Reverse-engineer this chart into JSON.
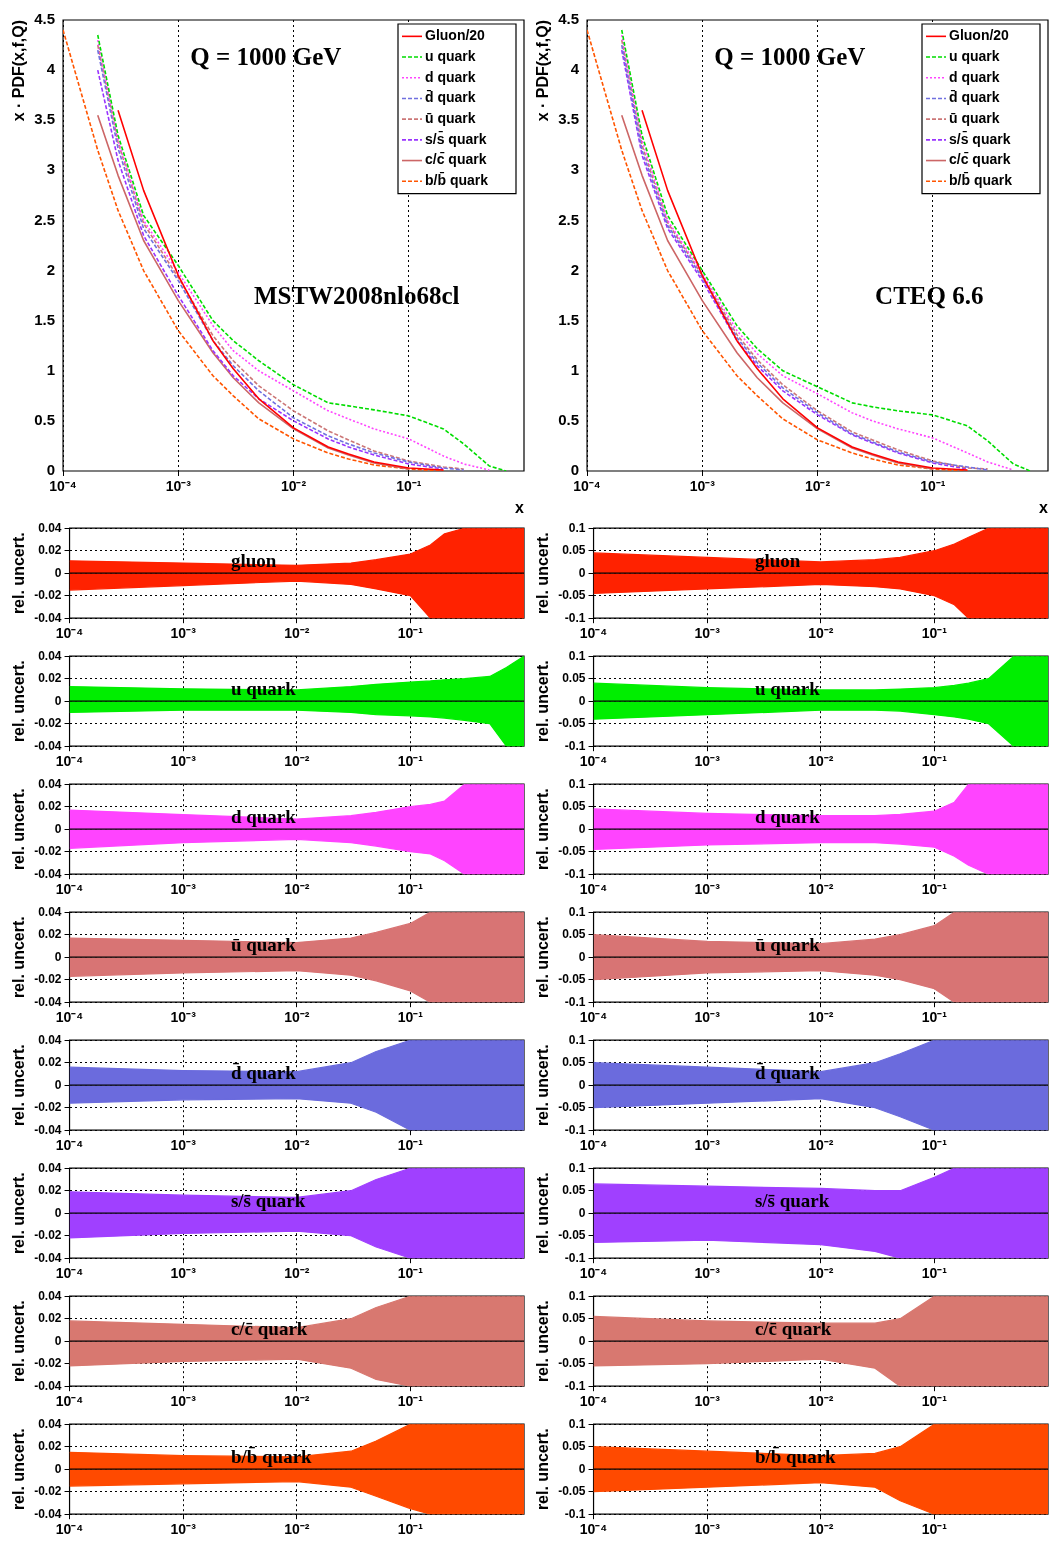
{
  "chart_data": [
    {
      "type": "line",
      "log": "x",
      "grid": "x",
      "legend": "top right",
      "ylabel": "x · PDF(x,f,Q)",
      "xlabel": "x",
      "xlim": [
        0.0001,
        1
      ],
      "xticks": [
        {
          "value": 0.0001,
          "label": "10⁻⁴"
        },
        {
          "value": 0.001,
          "label": "10⁻³"
        },
        {
          "value": 0.01,
          "label": "10⁻²"
        },
        {
          "value": 0.1,
          "label": "10⁻¹"
        }
      ],
      "ylim": [
        0,
        4.5
      ],
      "yticks": [
        0,
        0.5,
        1,
        1.5,
        2,
        2.5,
        3,
        3.5,
        4,
        4.5
      ],
      "annotations": [
        "Q = 1000 GeV",
        "MSTW2008nlo68cl"
      ],
      "x": [
        0.0001,
        0.0002,
        0.0003,
        0.0005,
        0.001,
        0.002,
        0.003,
        0.005,
        0.01,
        0.02,
        0.03,
        0.05,
        0.1,
        0.2,
        0.3,
        0.5,
        0.7
      ],
      "series": [
        {
          "name": "Gluon/20",
          "color": "#ff0000",
          "line_style": "solid",
          "values": [
            null,
            null,
            3.6,
            2.8,
            1.95,
            1.3,
            1.02,
            0.72,
            0.43,
            0.24,
            0.17,
            0.09,
            0.03,
            0.01,
            null,
            null,
            null
          ]
        },
        {
          "name": "u quark",
          "color": "#00dd00",
          "line_style": "dashed",
          "values": [
            null,
            4.35,
            3.35,
            2.55,
            2.05,
            1.5,
            1.3,
            1.1,
            0.86,
            0.68,
            0.65,
            0.61,
            0.55,
            0.42,
            0.27,
            0.05,
            0
          ]
        },
        {
          "name": "d quark",
          "color": "#ff44ff",
          "line_style": "dotted",
          "values": [
            null,
            4.3,
            3.3,
            2.5,
            1.98,
            1.45,
            1.2,
            1.0,
            0.8,
            0.6,
            0.52,
            0.42,
            0.32,
            0.15,
            0.07,
            0.01,
            null
          ]
        },
        {
          "name": "d̄ quark",
          "color": "#7070e0",
          "line_style": "dashed",
          "values": [
            null,
            4.2,
            3.22,
            2.42,
            1.9,
            1.3,
            1.05,
            0.8,
            0.53,
            0.35,
            0.27,
            0.18,
            0.09,
            0.03,
            0.01,
            null,
            null
          ]
        },
        {
          "name": "ū quark",
          "color": "#cc7777",
          "line_style": "dashed",
          "values": [
            null,
            4.25,
            3.28,
            2.47,
            1.93,
            1.35,
            1.1,
            0.85,
            0.6,
            0.4,
            0.31,
            0.2,
            0.1,
            0.04,
            0.02,
            null,
            null
          ]
        },
        {
          "name": "s/s̄ quark",
          "color": "#9933ff",
          "line_style": "dashed",
          "values": [
            null,
            4.0,
            3.1,
            2.35,
            1.75,
            1.2,
            0.95,
            0.72,
            0.5,
            0.32,
            0.24,
            0.16,
            0.07,
            0.02,
            null,
            null,
            null
          ]
        },
        {
          "name": "c/c̄ quark",
          "color": "#cc6666",
          "line_style": "solid",
          "values": [
            null,
            3.55,
            2.95,
            2.3,
            1.7,
            1.18,
            0.93,
            0.68,
            0.42,
            0.23,
            0.16,
            0.08,
            0.02,
            null,
            null,
            null,
            null
          ]
        },
        {
          "name": "b/b̄ quark",
          "color": "#ff5500",
          "line_style": "dashed",
          "values": [
            4.4,
            3.2,
            2.6,
            2.0,
            1.4,
            0.95,
            0.75,
            0.52,
            0.32,
            0.18,
            0.12,
            0.06,
            0.02,
            0,
            null,
            null,
            null
          ]
        }
      ]
    },
    {
      "type": "line",
      "log": "x",
      "grid": "x",
      "legend": "top right",
      "ylabel": "x · PDF(x,f,Q)",
      "xlabel": "x",
      "xlim": [
        0.0001,
        1
      ],
      "xticks": [
        {
          "value": 0.0001,
          "label": "10⁻⁴"
        },
        {
          "value": 0.001,
          "label": "10⁻³"
        },
        {
          "value": 0.01,
          "label": "10⁻²"
        },
        {
          "value": 0.1,
          "label": "10⁻¹"
        }
      ],
      "ylim": [
        0,
        4.5
      ],
      "yticks": [
        0,
        0.5,
        1,
        1.5,
        2,
        2.5,
        3,
        3.5,
        4,
        4.5
      ],
      "annotations": [
        "Q = 1000 GeV",
        "CTEQ 6.6"
      ],
      "x": [
        0.0001,
        0.0002,
        0.0003,
        0.0005,
        0.001,
        0.002,
        0.003,
        0.005,
        0.01,
        0.02,
        0.03,
        0.05,
        0.1,
        0.2,
        0.3,
        0.5,
        0.7
      ],
      "series": [
        {
          "name": "Gluon/20",
          "color": "#ff0000",
          "line_style": "solid",
          "values": [
            null,
            null,
            3.6,
            2.8,
            1.95,
            1.3,
            1.02,
            0.72,
            0.43,
            0.24,
            0.17,
            0.09,
            0.03,
            0.01,
            null,
            null,
            null
          ]
        },
        {
          "name": "u quark",
          "color": "#00dd00",
          "line_style": "dashed",
          "values": [
            null,
            4.4,
            3.35,
            2.55,
            2.0,
            1.45,
            1.22,
            1.0,
            0.84,
            0.68,
            0.64,
            0.6,
            0.56,
            0.45,
            0.3,
            0.07,
            0
          ]
        },
        {
          "name": "d quark",
          "color": "#ff44ff",
          "line_style": "dotted",
          "values": [
            null,
            4.35,
            3.3,
            2.5,
            1.97,
            1.4,
            1.17,
            0.95,
            0.77,
            0.58,
            0.5,
            0.42,
            0.33,
            0.18,
            0.09,
            0.01,
            null
          ]
        },
        {
          "name": "d̄ quark",
          "color": "#7070e0",
          "line_style": "dashed",
          "values": [
            null,
            4.25,
            3.2,
            2.45,
            1.93,
            1.33,
            1.08,
            0.83,
            0.58,
            0.37,
            0.29,
            0.19,
            0.09,
            0.04,
            0.01,
            null,
            null
          ]
        },
        {
          "name": "ū quark",
          "color": "#cc7777",
          "line_style": "dashed",
          "values": [
            null,
            4.3,
            3.25,
            2.48,
            1.95,
            1.36,
            1.11,
            0.86,
            0.6,
            0.39,
            0.31,
            0.21,
            0.1,
            0.03,
            0.02,
            null,
            null
          ]
        },
        {
          "name": "s/s̄ quark",
          "color": "#9933ff",
          "line_style": "dashed",
          "values": [
            null,
            4.2,
            3.15,
            2.42,
            1.9,
            1.3,
            1.05,
            0.8,
            0.56,
            0.36,
            0.28,
            0.18,
            0.08,
            0.02,
            null,
            null,
            null
          ]
        },
        {
          "name": "c/c̄ quark",
          "color": "#cc6666",
          "line_style": "solid",
          "values": [
            null,
            3.55,
            2.95,
            2.3,
            1.7,
            1.18,
            0.93,
            0.68,
            0.42,
            0.23,
            0.16,
            0.08,
            0.02,
            null,
            null,
            null,
            null
          ]
        },
        {
          "name": "b/b̄ quark",
          "color": "#ff5500",
          "line_style": "dashed",
          "values": [
            4.4,
            3.2,
            2.6,
            2.0,
            1.4,
            0.95,
            0.75,
            0.52,
            0.31,
            0.18,
            0.12,
            0.06,
            0.02,
            0,
            null,
            null,
            null
          ]
        }
      ]
    },
    {
      "type": "area",
      "log": "x",
      "grid": true,
      "ylabel": "rel. uncert.",
      "xlim": [
        0.0001,
        1
      ],
      "xticks": [
        {
          "value": 0.0001,
          "label": "10⁻⁴"
        },
        {
          "value": 0.001,
          "label": "10⁻³"
        },
        {
          "value": 0.01,
          "label": "10⁻²"
        },
        {
          "value": 0.1,
          "label": "10⁻¹"
        }
      ],
      "ylim": [
        -0.04,
        0.04
      ],
      "yticks": [
        -0.04,
        -0.02,
        0,
        0.02,
        0.04
      ],
      "annotations": [
        "gluon"
      ],
      "ref_lines": [
        {
          "axis": "y",
          "value": 0,
          "color": "#000000"
        }
      ],
      "x": [
        0.0001,
        0.001,
        0.01,
        0.03,
        0.05,
        0.1,
        0.15,
        0.2,
        0.3,
        0.5,
        0.7,
        1
      ],
      "series": [
        {
          "color": "#ff2200",
          "values": [
            0.011,
            0.009,
            0.007,
            0.009,
            0.012,
            0.017,
            0.025,
            0.035,
            0.04,
            0.04,
            0.04,
            0.04
          ]
        },
        {
          "color": "#ff2200",
          "values": [
            -0.015,
            -0.011,
            -0.007,
            -0.01,
            -0.014,
            -0.02,
            -0.04,
            -0.04,
            -0.04,
            -0.04,
            -0.04,
            -0.04
          ]
        }
      ]
    },
    {
      "type": "area",
      "log": "x",
      "grid": true,
      "ylabel": "rel. uncert.",
      "xlim": [
        0.0001,
        1
      ],
      "xticks": [
        {
          "value": 0.0001,
          "label": "10⁻⁴"
        },
        {
          "value": 0.001,
          "label": "10⁻³"
        },
        {
          "value": 0.01,
          "label": "10⁻²"
        },
        {
          "value": 0.1,
          "label": "10⁻¹"
        }
      ],
      "ylim": [
        -0.1,
        0.1
      ],
      "yticks": [
        -0.1,
        -0.05,
        0,
        0.05,
        0.1
      ],
      "annotations": [
        "gluon"
      ],
      "ref_lines": [
        {
          "axis": "y",
          "value": 0,
          "color": "#000000"
        }
      ],
      "x": [
        0.0001,
        0.001,
        0.01,
        0.03,
        0.05,
        0.1,
        0.15,
        0.2,
        0.3,
        0.5,
        0.7,
        1
      ],
      "series": [
        {
          "color": "#ff2200",
          "values": [
            0.045,
            0.035,
            0.025,
            0.03,
            0.035,
            0.05,
            0.065,
            0.08,
            0.1,
            0.1,
            0.1,
            0.1
          ]
        },
        {
          "color": "#ff2200",
          "values": [
            -0.045,
            -0.035,
            -0.025,
            -0.03,
            -0.035,
            -0.05,
            -0.07,
            -0.1,
            -0.1,
            -0.1,
            -0.1,
            -0.1
          ]
        }
      ]
    },
    {
      "type": "area",
      "log": "x",
      "grid": true,
      "ylabel": "rel. uncert.",
      "xlim": [
        0.0001,
        1
      ],
      "xticks": [
        {
          "value": 0.0001,
          "label": "10⁻⁴"
        },
        {
          "value": 0.001,
          "label": "10⁻³"
        },
        {
          "value": 0.01,
          "label": "10⁻²"
        },
        {
          "value": 0.1,
          "label": "10⁻¹"
        }
      ],
      "ylim": [
        -0.04,
        0.04
      ],
      "yticks": [
        -0.04,
        -0.02,
        0,
        0.02,
        0.04
      ],
      "annotations": [
        "u quark"
      ],
      "ref_lines": [
        {
          "axis": "y",
          "value": 0,
          "color": "#000000"
        }
      ],
      "x": [
        0.0001,
        0.001,
        0.01,
        0.03,
        0.05,
        0.1,
        0.15,
        0.2,
        0.3,
        0.5,
        0.7,
        1
      ],
      "series": [
        {
          "color": "#00ee00",
          "values": [
            0.013,
            0.011,
            0.01,
            0.013,
            0.015,
            0.017,
            0.018,
            0.019,
            0.02,
            0.022,
            0.03,
            0.04
          ]
        },
        {
          "color": "#00ee00",
          "values": [
            -0.01,
            -0.008,
            -0.008,
            -0.01,
            -0.012,
            -0.013,
            -0.014,
            -0.015,
            -0.017,
            -0.02,
            -0.04,
            -0.04
          ]
        }
      ]
    },
    {
      "type": "area",
      "log": "x",
      "grid": true,
      "ylabel": "rel. uncert.",
      "xlim": [
        0.0001,
        1
      ],
      "xticks": [
        {
          "value": 0.0001,
          "label": "10⁻⁴"
        },
        {
          "value": 0.001,
          "label": "10⁻³"
        },
        {
          "value": 0.01,
          "label": "10⁻²"
        },
        {
          "value": 0.1,
          "label": "10⁻¹"
        }
      ],
      "ylim": [
        -0.1,
        0.1
      ],
      "yticks": [
        -0.1,
        -0.05,
        0,
        0.05,
        0.1
      ],
      "annotations": [
        "u quark"
      ],
      "ref_lines": [
        {
          "axis": "y",
          "value": 0,
          "color": "#000000"
        }
      ],
      "x": [
        0.0001,
        0.001,
        0.01,
        0.03,
        0.05,
        0.1,
        0.15,
        0.2,
        0.3,
        0.5,
        0.7,
        1
      ],
      "series": [
        {
          "color": "#00ee00",
          "values": [
            0.04,
            0.03,
            0.025,
            0.025,
            0.027,
            0.03,
            0.035,
            0.04,
            0.05,
            0.1,
            0.1,
            0.1
          ]
        },
        {
          "color": "#00ee00",
          "values": [
            -0.04,
            -0.03,
            -0.02,
            -0.02,
            -0.022,
            -0.03,
            -0.035,
            -0.04,
            -0.05,
            -0.1,
            -0.1,
            -0.1
          ]
        }
      ]
    },
    {
      "type": "area",
      "log": "x",
      "grid": true,
      "ylabel": "rel. uncert.",
      "xlim": [
        0.0001,
        1
      ],
      "xticks": [
        {
          "value": 0.0001,
          "label": "10⁻⁴"
        },
        {
          "value": 0.001,
          "label": "10⁻³"
        },
        {
          "value": 0.01,
          "label": "10⁻²"
        },
        {
          "value": 0.1,
          "label": "10⁻¹"
        }
      ],
      "ylim": [
        -0.04,
        0.04
      ],
      "yticks": [
        -0.04,
        -0.02,
        0,
        0.02,
        0.04
      ],
      "annotations": [
        "d quark"
      ],
      "ref_lines": [
        {
          "axis": "y",
          "value": 0,
          "color": "#000000"
        }
      ],
      "x": [
        0.0001,
        0.001,
        0.01,
        0.03,
        0.05,
        0.1,
        0.15,
        0.2,
        0.3,
        0.5,
        0.7,
        1
      ],
      "series": [
        {
          "color": "#ff44ff",
          "values": [
            0.017,
            0.013,
            0.009,
            0.012,
            0.015,
            0.02,
            0.022,
            0.025,
            0.04,
            0.04,
            0.04,
            0.04
          ]
        },
        {
          "color": "#ff44ff",
          "values": [
            -0.017,
            -0.012,
            -0.009,
            -0.012,
            -0.015,
            -0.02,
            -0.022,
            -0.028,
            -0.04,
            -0.04,
            -0.04,
            -0.04
          ]
        }
      ]
    },
    {
      "type": "area",
      "log": "x",
      "grid": true,
      "ylabel": "rel. uncert.",
      "xlim": [
        0.0001,
        1
      ],
      "xticks": [
        {
          "value": 0.0001,
          "label": "10⁻⁴"
        },
        {
          "value": 0.001,
          "label": "10⁻³"
        },
        {
          "value": 0.01,
          "label": "10⁻²"
        },
        {
          "value": 0.1,
          "label": "10⁻¹"
        }
      ],
      "ylim": [
        -0.1,
        0.1
      ],
      "yticks": [
        -0.1,
        -0.05,
        0,
        0.05,
        0.1
      ],
      "annotations": [
        "d quark"
      ],
      "ref_lines": [
        {
          "axis": "y",
          "value": 0,
          "color": "#000000"
        }
      ],
      "x": [
        0.0001,
        0.001,
        0.01,
        0.03,
        0.05,
        0.1,
        0.15,
        0.2,
        0.3,
        0.5,
        0.7,
        1
      ],
      "series": [
        {
          "color": "#ff44ff",
          "values": [
            0.045,
            0.035,
            0.03,
            0.03,
            0.033,
            0.04,
            0.06,
            0.1,
            0.1,
            0.1,
            0.1,
            0.1
          ]
        },
        {
          "color": "#ff44ff",
          "values": [
            -0.045,
            -0.035,
            -0.03,
            -0.03,
            -0.033,
            -0.04,
            -0.06,
            -0.08,
            -0.1,
            -0.1,
            -0.1,
            -0.1
          ]
        }
      ]
    },
    {
      "type": "area",
      "log": "x",
      "grid": true,
      "ylabel": "rel. uncert.",
      "xlim": [
        0.0001,
        1
      ],
      "xticks": [
        {
          "value": 0.0001,
          "label": "10⁻⁴"
        },
        {
          "value": 0.001,
          "label": "10⁻³"
        },
        {
          "value": 0.01,
          "label": "10⁻²"
        },
        {
          "value": 0.1,
          "label": "10⁻¹"
        }
      ],
      "ylim": [
        -0.04,
        0.04
      ],
      "yticks": [
        -0.04,
        -0.02,
        0,
        0.02,
        0.04
      ],
      "annotations": [
        "ū quark"
      ],
      "ref_lines": [
        {
          "axis": "y",
          "value": 0,
          "color": "#000000"
        }
      ],
      "x": [
        0.0001,
        0.001,
        0.01,
        0.03,
        0.05,
        0.1,
        0.15,
        0.2,
        0.3,
        0.5,
        0.7,
        1
      ],
      "series": [
        {
          "color": "#d87474",
          "values": [
            0.017,
            0.015,
            0.013,
            0.017,
            0.022,
            0.03,
            0.04,
            0.04,
            0.04,
            0.04,
            0.04,
            0.04
          ]
        },
        {
          "color": "#d87474",
          "values": [
            -0.017,
            -0.014,
            -0.012,
            -0.016,
            -0.021,
            -0.03,
            -0.04,
            -0.04,
            -0.04,
            -0.04,
            -0.04,
            -0.04
          ]
        }
      ]
    },
    {
      "type": "area",
      "log": "x",
      "grid": true,
      "ylabel": "rel. uncert.",
      "xlim": [
        0.0001,
        1
      ],
      "xticks": [
        {
          "value": 0.0001,
          "label": "10⁻⁴"
        },
        {
          "value": 0.001,
          "label": "10⁻³"
        },
        {
          "value": 0.01,
          "label": "10⁻²"
        },
        {
          "value": 0.1,
          "label": "10⁻¹"
        }
      ],
      "ylim": [
        -0.1,
        0.1
      ],
      "yticks": [
        -0.1,
        -0.05,
        0,
        0.05,
        0.1
      ],
      "annotations": [
        "ū quark"
      ],
      "ref_lines": [
        {
          "axis": "y",
          "value": 0,
          "color": "#000000"
        }
      ],
      "x": [
        0.0001,
        0.001,
        0.01,
        0.03,
        0.05,
        0.1,
        0.15,
        0.2,
        0.3,
        0.5,
        0.7,
        1
      ],
      "series": [
        {
          "color": "#d87474",
          "values": [
            0.05,
            0.035,
            0.03,
            0.04,
            0.05,
            0.07,
            0.1,
            0.1,
            0.1,
            0.1,
            0.1,
            0.1
          ]
        },
        {
          "color": "#d87474",
          "values": [
            -0.05,
            -0.035,
            -0.03,
            -0.04,
            -0.05,
            -0.07,
            -0.1,
            -0.1,
            -0.1,
            -0.1,
            -0.1,
            -0.1
          ]
        }
      ]
    },
    {
      "type": "area",
      "log": "x",
      "grid": true,
      "ylabel": "rel. uncert.",
      "xlim": [
        0.0001,
        1
      ],
      "xticks": [
        {
          "value": 0.0001,
          "label": "10⁻⁴"
        },
        {
          "value": 0.001,
          "label": "10⁻³"
        },
        {
          "value": 0.01,
          "label": "10⁻²"
        },
        {
          "value": 0.1,
          "label": "10⁻¹"
        }
      ],
      "ylim": [
        -0.04,
        0.04
      ],
      "yticks": [
        -0.04,
        -0.02,
        0,
        0.02,
        0.04
      ],
      "annotations": [
        "d̄ quark"
      ],
      "ref_lines": [
        {
          "axis": "y",
          "value": 0,
          "color": "#000000"
        }
      ],
      "x": [
        0.0001,
        0.001,
        0.01,
        0.03,
        0.05,
        0.1,
        0.15,
        0.2,
        0.3,
        0.5,
        0.7,
        1
      ],
      "series": [
        {
          "color": "#6b6bdd",
          "values": [
            0.016,
            0.013,
            0.012,
            0.02,
            0.03,
            0.04,
            0.04,
            0.04,
            0.04,
            0.04,
            0.04,
            0.04
          ]
        },
        {
          "color": "#6b6bdd",
          "values": [
            -0.016,
            -0.013,
            -0.012,
            -0.016,
            -0.024,
            -0.04,
            -0.04,
            -0.04,
            -0.04,
            -0.04,
            -0.04,
            -0.04
          ]
        }
      ]
    },
    {
      "type": "area",
      "log": "x",
      "grid": true,
      "ylabel": "rel. uncert.",
      "xlim": [
        0.0001,
        1
      ],
      "xticks": [
        {
          "value": 0.0001,
          "label": "10⁻⁴"
        },
        {
          "value": 0.001,
          "label": "10⁻³"
        },
        {
          "value": 0.01,
          "label": "10⁻²"
        },
        {
          "value": 0.1,
          "label": "10⁻¹"
        }
      ],
      "ylim": [
        -0.1,
        0.1
      ],
      "yticks": [
        -0.1,
        -0.05,
        0,
        0.05,
        0.1
      ],
      "annotations": [
        "d̄ quark"
      ],
      "ref_lines": [
        {
          "axis": "y",
          "value": 0,
          "color": "#000000"
        }
      ],
      "x": [
        0.0001,
        0.001,
        0.01,
        0.03,
        0.05,
        0.1,
        0.15,
        0.2,
        0.3,
        0.5,
        0.7,
        1
      ],
      "series": [
        {
          "color": "#6b6bdd",
          "values": [
            0.05,
            0.04,
            0.03,
            0.05,
            0.07,
            0.1,
            0.1,
            0.1,
            0.1,
            0.1,
            0.1,
            0.1
          ]
        },
        {
          "color": "#6b6bdd",
          "values": [
            -0.05,
            -0.04,
            -0.03,
            -0.05,
            -0.07,
            -0.1,
            -0.1,
            -0.1,
            -0.1,
            -0.1,
            -0.1,
            -0.1
          ]
        }
      ]
    },
    {
      "type": "area",
      "log": "x",
      "grid": true,
      "ylabel": "rel. uncert.",
      "xlim": [
        0.0001,
        1
      ],
      "xticks": [
        {
          "value": 0.0001,
          "label": "10⁻⁴"
        },
        {
          "value": 0.001,
          "label": "10⁻³"
        },
        {
          "value": 0.01,
          "label": "10⁻²"
        },
        {
          "value": 0.1,
          "label": "10⁻¹"
        }
      ],
      "ylim": [
        -0.04,
        0.04
      ],
      "yticks": [
        -0.04,
        -0.02,
        0,
        0.02,
        0.04
      ],
      "annotations": [
        "s/s̄ quark"
      ],
      "ref_lines": [
        {
          "axis": "y",
          "value": 0,
          "color": "#000000"
        }
      ],
      "x": [
        0.0001,
        0.001,
        0.01,
        0.03,
        0.05,
        0.1,
        0.15,
        0.2,
        0.3,
        0.5,
        0.7,
        1
      ],
      "series": [
        {
          "color": "#a040ff",
          "values": [
            0.019,
            0.016,
            0.014,
            0.02,
            0.03,
            0.04,
            0.04,
            0.04,
            0.04,
            0.04,
            0.04,
            0.04
          ]
        },
        {
          "color": "#a040ff",
          "values": [
            -0.022,
            -0.018,
            -0.016,
            -0.02,
            -0.03,
            -0.04,
            -0.04,
            -0.04,
            -0.04,
            -0.04,
            -0.04,
            -0.04
          ]
        }
      ]
    },
    {
      "type": "area",
      "log": "x",
      "grid": true,
      "ylabel": "rel. uncert.",
      "xlim": [
        0.0001,
        1
      ],
      "xticks": [
        {
          "value": 0.0001,
          "label": "10⁻⁴"
        },
        {
          "value": 0.001,
          "label": "10⁻³"
        },
        {
          "value": 0.01,
          "label": "10⁻²"
        },
        {
          "value": 0.1,
          "label": "10⁻¹"
        }
      ],
      "ylim": [
        -0.1,
        0.1
      ],
      "yticks": [
        -0.1,
        -0.05,
        0,
        0.05,
        0.1
      ],
      "annotations": [
        "s/s̄ quark"
      ],
      "ref_lines": [
        {
          "axis": "y",
          "value": 0,
          "color": "#000000"
        }
      ],
      "x": [
        0.0001,
        0.001,
        0.01,
        0.03,
        0.05,
        0.1,
        0.15,
        0.2,
        0.3,
        0.5,
        0.7,
        1
      ],
      "series": [
        {
          "color": "#a040ff",
          "values": [
            0.065,
            0.06,
            0.055,
            0.05,
            0.05,
            0.08,
            0.1,
            0.1,
            0.1,
            0.1,
            0.1,
            0.1
          ]
        },
        {
          "color": "#a040ff",
          "values": [
            -0.065,
            -0.06,
            -0.07,
            -0.085,
            -0.1,
            -0.1,
            -0.1,
            -0.1,
            -0.1,
            -0.1,
            -0.1,
            -0.1
          ]
        }
      ]
    },
    {
      "type": "area",
      "log": "x",
      "grid": true,
      "ylabel": "rel. uncert.",
      "xlim": [
        0.0001,
        1
      ],
      "xticks": [
        {
          "value": 0.0001,
          "label": "10⁻⁴"
        },
        {
          "value": 0.001,
          "label": "10⁻³"
        },
        {
          "value": 0.01,
          "label": "10⁻²"
        },
        {
          "value": 0.1,
          "label": "10⁻¹"
        }
      ],
      "ylim": [
        -0.04,
        0.04
      ],
      "yticks": [
        -0.04,
        -0.02,
        0,
        0.02,
        0.04
      ],
      "annotations": [
        "c/c̄ quark"
      ],
      "ref_lines": [
        {
          "axis": "y",
          "value": 0,
          "color": "#000000"
        }
      ],
      "x": [
        0.0001,
        0.001,
        0.01,
        0.03,
        0.05,
        0.1,
        0.15,
        0.2,
        0.3,
        0.5,
        0.7,
        1
      ],
      "series": [
        {
          "color": "#d87870",
          "values": [
            0.018,
            0.015,
            0.012,
            0.02,
            0.03,
            0.04,
            0.04,
            0.04,
            0.04,
            0.04,
            0.04,
            0.04
          ]
        },
        {
          "color": "#d87870",
          "values": [
            -0.022,
            -0.018,
            -0.016,
            -0.024,
            -0.034,
            -0.04,
            -0.04,
            -0.04,
            -0.04,
            -0.04,
            -0.04,
            -0.04
          ]
        }
      ]
    },
    {
      "type": "area",
      "log": "x",
      "grid": true,
      "ylabel": "rel. uncert.",
      "xlim": [
        0.0001,
        1
      ],
      "xticks": [
        {
          "value": 0.0001,
          "label": "10⁻⁴"
        },
        {
          "value": 0.001,
          "label": "10⁻³"
        },
        {
          "value": 0.01,
          "label": "10⁻²"
        },
        {
          "value": 0.1,
          "label": "10⁻¹"
        }
      ],
      "ylim": [
        -0.1,
        0.1
      ],
      "yticks": [
        -0.1,
        -0.05,
        0,
        0.05,
        0.1
      ],
      "annotations": [
        "c/c̄ quark"
      ],
      "ref_lines": [
        {
          "axis": "y",
          "value": 0,
          "color": "#000000"
        }
      ],
      "x": [
        0.0001,
        0.001,
        0.01,
        0.03,
        0.05,
        0.1,
        0.15,
        0.2,
        0.3,
        0.5,
        0.7,
        1
      ],
      "series": [
        {
          "color": "#d87870",
          "values": [
            0.055,
            0.045,
            0.04,
            0.04,
            0.05,
            0.1,
            0.1,
            0.1,
            0.1,
            0.1,
            0.1,
            0.1
          ]
        },
        {
          "color": "#d87870",
          "values": [
            -0.055,
            -0.05,
            -0.04,
            -0.06,
            -0.1,
            -0.1,
            -0.1,
            -0.1,
            -0.1,
            -0.1,
            -0.1,
            -0.1
          ]
        }
      ]
    },
    {
      "type": "area",
      "log": "x",
      "grid": true,
      "ylabel": "rel. uncert.",
      "xlim": [
        0.0001,
        1
      ],
      "xticks": [
        {
          "value": 0.0001,
          "label": "10⁻⁴"
        },
        {
          "value": 0.001,
          "label": "10⁻³"
        },
        {
          "value": 0.01,
          "label": "10⁻²"
        },
        {
          "value": 0.1,
          "label": "10⁻¹"
        }
      ],
      "ylim": [
        -0.04,
        0.04
      ],
      "yticks": [
        -0.04,
        -0.02,
        0,
        0.02,
        0.04
      ],
      "annotations": [
        "b/b̄ quark"
      ],
      "ref_lines": [
        {
          "axis": "y",
          "value": 0,
          "color": "#000000"
        }
      ],
      "x": [
        0.0001,
        0.001,
        0.01,
        0.03,
        0.05,
        0.1,
        0.15,
        0.2,
        0.3,
        0.5,
        0.7,
        1
      ],
      "series": [
        {
          "color": "#ff4a00",
          "values": [
            0.015,
            0.012,
            0.011,
            0.016,
            0.025,
            0.04,
            0.04,
            0.04,
            0.04,
            0.04,
            0.04,
            0.04
          ]
        },
        {
          "color": "#ff4a00",
          "values": [
            -0.015,
            -0.013,
            -0.011,
            -0.016,
            -0.024,
            -0.035,
            -0.04,
            -0.04,
            -0.04,
            -0.04,
            -0.04,
            -0.04
          ]
        }
      ]
    },
    {
      "type": "area",
      "log": "x",
      "grid": true,
      "ylabel": "rel. uncert.",
      "xlim": [
        0.0001,
        1
      ],
      "xticks": [
        {
          "value": 0.0001,
          "label": "10⁻⁴"
        },
        {
          "value": 0.001,
          "label": "10⁻³"
        },
        {
          "value": 0.01,
          "label": "10⁻²"
        },
        {
          "value": 0.1,
          "label": "10⁻¹"
        }
      ],
      "ylim": [
        -0.1,
        0.1
      ],
      "yticks": [
        -0.1,
        -0.05,
        0,
        0.05,
        0.1
      ],
      "annotations": [
        "b/b̄ quark"
      ],
      "ref_lines": [
        {
          "axis": "y",
          "value": 0,
          "color": "#000000"
        }
      ],
      "x": [
        0.0001,
        0.001,
        0.01,
        0.03,
        0.05,
        0.1,
        0.15,
        0.2,
        0.3,
        0.5,
        0.7,
        1
      ],
      "series": [
        {
          "color": "#ff4a00",
          "values": [
            0.05,
            0.04,
            0.03,
            0.035,
            0.05,
            0.1,
            0.1,
            0.1,
            0.1,
            0.1,
            0.1,
            0.1
          ]
        },
        {
          "color": "#ff4a00",
          "values": [
            -0.05,
            -0.04,
            -0.03,
            -0.04,
            -0.07,
            -0.1,
            -0.1,
            -0.1,
            -0.1,
            -0.1,
            -0.1,
            -0.1
          ]
        }
      ]
    }
  ]
}
